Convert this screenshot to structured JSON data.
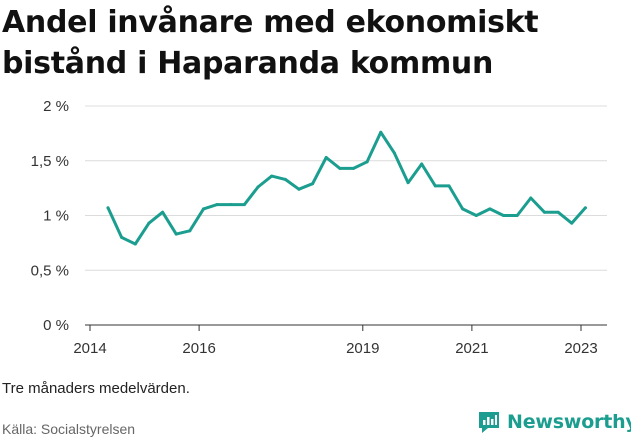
{
  "header": {
    "title": "Andel invånare med ekonomiskt bistånd i Haparanda kommun"
  },
  "footer": {
    "note": "Tre månaders medelvärden.",
    "source": "Källa: Socialstyrelsen",
    "brand": "Newsworthy",
    "brand_icon": "newsworthy-logo-icon",
    "brand_color": "#1b9e8f"
  },
  "chart_data": {
    "type": "line",
    "x_unit": "year",
    "x_ticks": [
      "2014",
      "2016",
      "2019",
      "2021",
      "2023"
    ],
    "y_ticks": [
      "0 %",
      "0,5 %",
      "1 %",
      "1,5 %",
      "2 %"
    ],
    "ylim": [
      0,
      2
    ],
    "xlim": [
      2014,
      2023.5
    ],
    "grid": "horizontal",
    "line_color": "#1b9e8f",
    "series": [
      {
        "x": [
          2014.33,
          2014.58,
          2014.83,
          2015.08,
          2015.33,
          2015.58,
          2015.83,
          2016.08,
          2016.33,
          2016.58,
          2016.83,
          2017.08,
          2017.33,
          2017.58,
          2017.83,
          2018.08,
          2018.33,
          2018.58,
          2018.83,
          2019.08,
          2019.33,
          2019.58,
          2019.83,
          2020.08,
          2020.33,
          2020.58,
          2020.83,
          2021.08,
          2021.33,
          2021.58,
          2021.83,
          2022.08,
          2022.33,
          2022.58,
          2022.83,
          2023.08
        ],
        "values": [
          1.07,
          0.8,
          0.74,
          0.93,
          1.03,
          0.83,
          0.86,
          1.06,
          1.1,
          1.1,
          1.1,
          1.26,
          1.36,
          1.33,
          1.24,
          1.29,
          1.53,
          1.43,
          1.43,
          1.49,
          1.76,
          1.57,
          1.3,
          1.47,
          1.27,
          1.27,
          1.06,
          1.0,
          1.06,
          1.0,
          1.0,
          1.16,
          1.03,
          1.03,
          0.93,
          1.07
        ]
      }
    ]
  }
}
